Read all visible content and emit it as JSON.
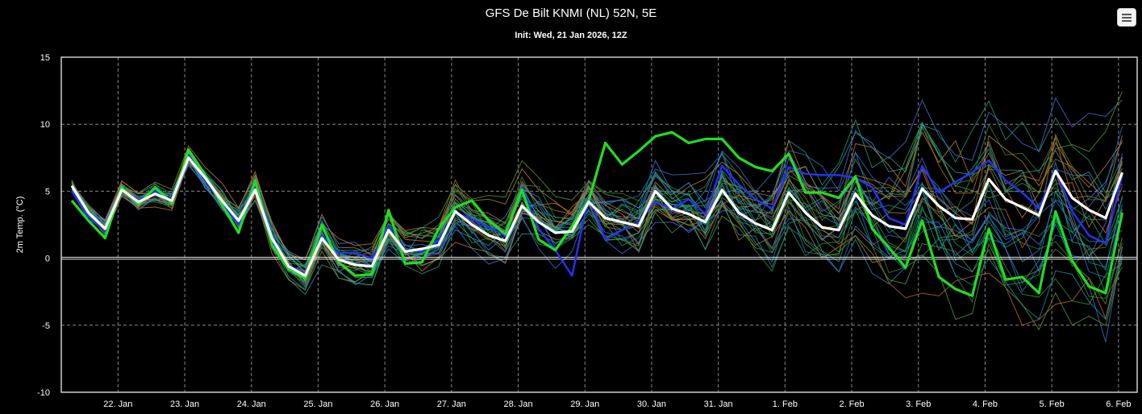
{
  "header": {
    "title": "GFS De Bilt KNMI (NL) 52N, 5E",
    "subtitle": "Init: Wed, 21 Jan 2026, 12Z"
  },
  "toolbar": {
    "menu_icon": "hamburger-menu-icon"
  },
  "chart_data": {
    "type": "line",
    "title": "GFS De Bilt KNMI (NL) 52N, 5E",
    "subtitle": "Init: Wed, 21 Jan 2026, 12Z",
    "xlabel": "",
    "ylabel": "2m Temp. (°C)",
    "ylim": [
      -10,
      15
    ],
    "yticks": [
      -10,
      -5,
      0,
      5,
      10,
      15
    ],
    "xticks": [
      "22. Jan",
      "23. Jan",
      "24. Jan",
      "25. Jan",
      "26. Jan",
      "27. Jan",
      "28. Jan",
      "29. Jan",
      "30. Jan",
      "31. Jan",
      "1. Feb",
      "2. Feb",
      "3. Feb",
      "4. Feb",
      "5. Feb",
      "6. Feb"
    ],
    "grid": true,
    "time_step_hours": 6,
    "start": "21 Jan 2026 12Z",
    "series": [
      {
        "role": "mean",
        "color": "#ffffff",
        "values": [
          5.4,
          3.4,
          2.2,
          5.1,
          4.2,
          4.8,
          4.3,
          7.5,
          6.0,
          4.3,
          2.8,
          5.1,
          1.5,
          -0.6,
          -1.3,
          1.5,
          -0.1,
          -0.5,
          -0.6,
          2.1,
          0.5,
          0.7,
          1.0,
          3.5,
          2.5,
          1.7,
          1.3,
          3.9,
          2.7,
          1.9,
          2.0,
          4.2,
          3.0,
          2.7,
          2.4,
          5.0,
          3.7,
          3.3,
          2.7,
          5.1,
          3.4,
          2.6,
          2.1,
          4.9,
          3.4,
          2.3,
          2.1,
          4.8,
          3.2,
          2.4,
          2.2,
          5.2,
          3.9,
          3.0,
          2.9,
          5.9,
          4.4,
          3.8,
          3.2,
          6.5,
          4.5,
          3.6,
          3.0,
          6.4
        ]
      },
      {
        "role": "operational",
        "color": "#22dd22",
        "values": [
          4.3,
          2.8,
          1.5,
          5.3,
          4.0,
          5.3,
          4.1,
          8.1,
          6.2,
          4.0,
          1.9,
          5.8,
          1.0,
          -0.8,
          -1.5,
          2.5,
          -0.3,
          -1.3,
          -1.2,
          3.6,
          -0.4,
          -0.3,
          2.2,
          3.8,
          4.3,
          2.8,
          1.8,
          5.1,
          1.4,
          0.6,
          2.4,
          4.3,
          8.6,
          7.0,
          8.0,
          9.1,
          9.4,
          8.6,
          8.9,
          8.9,
          7.5,
          6.8,
          6.5,
          7.8,
          4.9,
          4.9,
          4.5,
          6.1,
          2.2,
          0.8,
          -0.7,
          2.8,
          -1.4,
          -2.3,
          -2.8,
          2.2,
          -1.6,
          -1.4,
          -2.6,
          3.5,
          -0.2,
          -2.1,
          -2.6,
          3.4
        ]
      },
      {
        "role": "control",
        "color": "#2233ee",
        "values": [
          5.0,
          3.1,
          2.0,
          5.1,
          4.3,
          5.0,
          4.2,
          7.7,
          5.8,
          4.2,
          2.5,
          5.3,
          1.2,
          -0.5,
          -1.2,
          1.7,
          0.4,
          0.4,
          0.0,
          2.3,
          0.6,
          0.5,
          1.3,
          3.4,
          2.9,
          2.3,
          1.7,
          5.2,
          2.2,
          0.6,
          -1.3,
          4.6,
          1.4,
          2.1,
          2.7,
          4.2,
          3.7,
          4.4,
          3.3,
          6.9,
          5.5,
          4.4,
          3.7,
          6.8,
          6.3,
          6.2,
          6.2,
          6.0,
          5.3,
          3.0,
          2.5,
          6.9,
          4.9,
          5.7,
          6.4,
          7.3,
          5.8,
          4.9,
          3.7,
          6.6,
          3.5,
          1.7,
          1.1,
          6.2
        ]
      }
    ]
  }
}
